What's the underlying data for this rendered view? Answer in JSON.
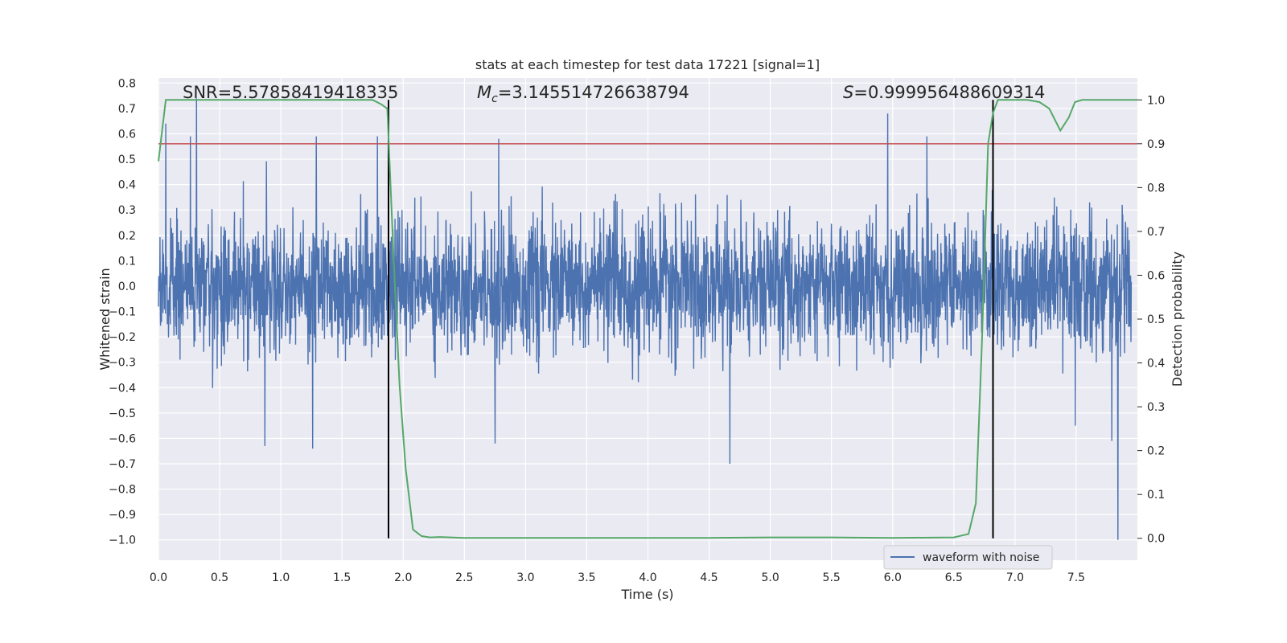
{
  "chart_data": {
    "type": "line",
    "title": "stats at each timestep for test data 17221 [signal=1]",
    "xlabel": "Time (s)",
    "ylabel_left": "Whitened strain",
    "ylabel_right": "Detection probability",
    "xlim": [
      0.0,
      8.0
    ],
    "ylim_left": [
      -1.08,
      0.82
    ],
    "ylim_right": [
      -0.05,
      1.05
    ],
    "grid": true,
    "x_ticks": [
      "0.0",
      "0.5",
      "1.0",
      "1.5",
      "2.0",
      "2.5",
      "3.0",
      "3.5",
      "4.0",
      "4.5",
      "5.0",
      "5.5",
      "6.0",
      "6.5",
      "7.0",
      "7.5"
    ],
    "y_left_ticks": [
      "0.8",
      "0.7",
      "0.6",
      "0.5",
      "0.4",
      "0.3",
      "0.2",
      "0.1",
      "0.0",
      "−0.1",
      "−0.2",
      "−0.3",
      "−0.4",
      "−0.5",
      "−0.6",
      "−0.7",
      "−0.8",
      "−0.9",
      "−1.0"
    ],
    "y_right_ticks": [
      "1.0",
      "0.9",
      "0.8",
      "0.7",
      "0.6",
      "0.5",
      "0.4",
      "0.3",
      "0.2",
      "0.1",
      "0.0"
    ],
    "annotations": {
      "snr": "SNR=5.57858419418335",
      "mc_symbol": "M",
      "mc_sub": "c",
      "mc_value": "=3.145514726638794",
      "s_symbol": "S",
      "s_value": "=0.999956488609314"
    },
    "threshold": {
      "value": 0.9,
      "color": "#c44e52"
    },
    "vertical_lines": [
      1.88,
      6.82
    ],
    "waveform": {
      "name": "waveform with noise",
      "color": "#4c72b0",
      "noise_std": 0.13,
      "spikes": [
        {
          "x": 0.06,
          "y": 0.64
        },
        {
          "x": 0.31,
          "y": 0.74
        },
        {
          "x": 0.26,
          "y": 0.59
        },
        {
          "x": 1.29,
          "y": 0.59
        },
        {
          "x": 1.79,
          "y": 0.59
        },
        {
          "x": 2.78,
          "y": 0.58
        },
        {
          "x": 5.96,
          "y": 0.68
        },
        {
          "x": 6.28,
          "y": 0.59
        },
        {
          "x": 6.82,
          "y": 0.59
        },
        {
          "x": 0.87,
          "y": -0.63
        },
        {
          "x": 1.26,
          "y": -0.64
        },
        {
          "x": 2.75,
          "y": -0.62
        },
        {
          "x": 4.67,
          "y": -0.7
        },
        {
          "x": 7.79,
          "y": -0.61
        },
        {
          "x": 7.84,
          "y": -1.0
        }
      ]
    },
    "probability": {
      "color": "#55a868",
      "x": [
        0.0,
        0.06,
        0.12,
        0.2,
        0.5,
        1.0,
        1.5,
        1.75,
        1.82,
        1.87,
        1.92,
        1.97,
        2.02,
        2.08,
        2.15,
        2.22,
        2.3,
        2.5,
        3.0,
        3.5,
        4.0,
        4.5,
        5.0,
        5.5,
        6.0,
        6.5,
        6.62,
        6.68,
        6.73,
        6.78,
        6.82,
        6.86,
        6.93,
        7.0,
        7.1,
        7.2,
        7.28,
        7.37,
        7.44,
        7.49,
        7.55,
        7.62,
        7.7,
        8.0
      ],
      "y": [
        0.86,
        1.0,
        1.0,
        1.0,
        1.0,
        1.0,
        1.0,
        1.0,
        0.99,
        0.98,
        0.65,
        0.35,
        0.16,
        0.02,
        0.005,
        0.002,
        0.003,
        0.001,
        0.001,
        0.001,
        0.001,
        0.001,
        0.002,
        0.002,
        0.001,
        0.002,
        0.01,
        0.08,
        0.45,
        0.9,
        0.97,
        1.0,
        1.0,
        1.0,
        1.0,
        0.995,
        0.98,
        0.93,
        0.96,
        0.995,
        1.0,
        1.0,
        1.0,
        1.0
      ]
    }
  }
}
